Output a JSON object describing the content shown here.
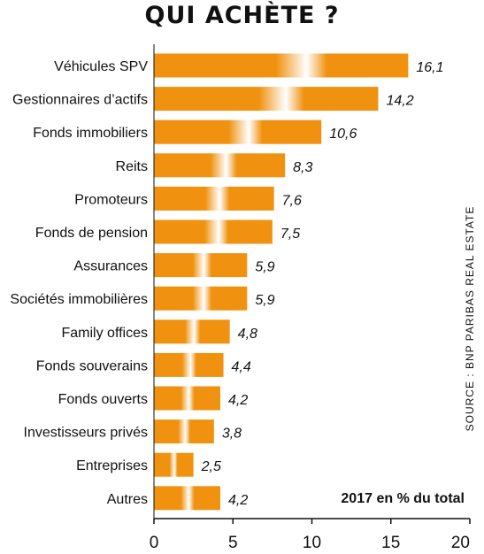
{
  "chart_data": {
    "type": "bar",
    "orientation": "horizontal",
    "title": "QUI ACHÈTE ?",
    "unit_note": "2017 en % du total",
    "source": "SOURCE : BNP PARIBAS REAL ESTATE",
    "categories": [
      "Véhicules SPV",
      "Gestionnaires d’actifs",
      "Fonds immobiliers",
      "Reits",
      "Promoteurs",
      "Fonds de pension",
      "Assurances",
      "Sociétés immobilières",
      "Family offices",
      "Fonds souverains",
      "Fonds ouverts",
      "Investisseurs privés",
      "Entreprises",
      "Autres"
    ],
    "values": [
      16.1,
      14.2,
      10.6,
      8.3,
      7.6,
      7.5,
      5.9,
      5.9,
      4.8,
      4.4,
      4.2,
      3.8,
      2.5,
      4.2
    ],
    "value_labels": [
      "16,1",
      "14,2",
      "10,6",
      "8,3",
      "7,6",
      "7,5",
      "5,9",
      "5,9",
      "4,8",
      "4,4",
      "4,2",
      "3,8",
      "2,5",
      "4,2"
    ],
    "xlim": [
      0,
      20
    ],
    "xticks": [
      "0",
      "5",
      "10",
      "15",
      "20"
    ],
    "grid": false,
    "bar_color": "#f0920f",
    "bar_highlight_color": "#ffffff"
  }
}
